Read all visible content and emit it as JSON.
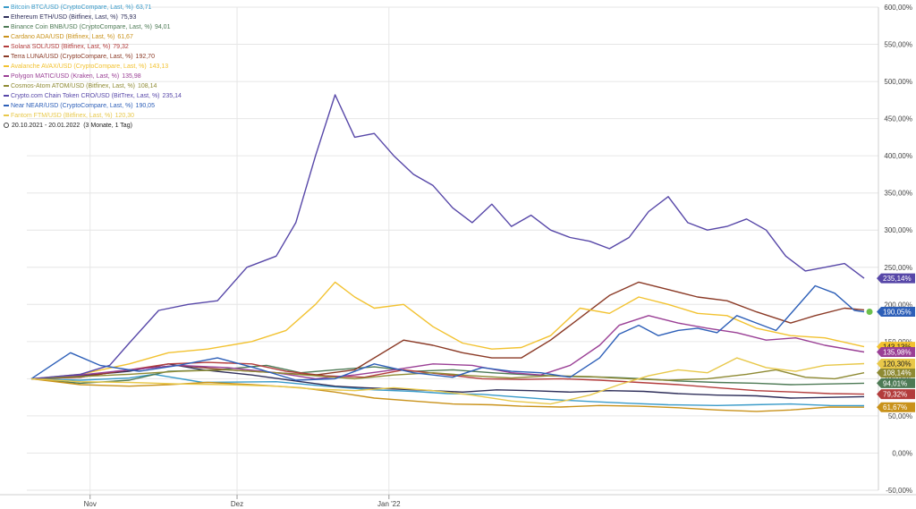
{
  "chart_data": {
    "type": "line",
    "date_range": "20.10.2021 - 20.01.2022",
    "period": "(3 Monate, 1 Tag)",
    "x_ticks": [
      "Nov",
      "Dez",
      "Jan '22"
    ],
    "y_ticks": [
      "600,00%",
      "550,00%",
      "500,00%",
      "450,00%",
      "400,00%",
      "350,00%",
      "300,00%",
      "250,00%",
      "200,00%",
      "150,00%",
      "100,00%",
      "50,00%",
      "0,00%",
      "-50,00%"
    ],
    "ylim": [
      -50,
      600
    ],
    "grid": true,
    "legend_position": "top-left",
    "series": [
      {
        "name": "Bitcoin BTC/USD (CryptoCompare, Last, %)",
        "last": "63,71",
        "badge": "",
        "color": "#3a9bc9",
        "points": [
          [
            0,
            100
          ],
          [
            10,
            98
          ],
          [
            20,
            101
          ],
          [
            25,
            106
          ],
          [
            35,
            95
          ],
          [
            50,
            96
          ],
          [
            60,
            90
          ],
          [
            70,
            85
          ],
          [
            78,
            83
          ],
          [
            85,
            80
          ],
          [
            92,
            79
          ],
          [
            98,
            76
          ],
          [
            106,
            72
          ],
          [
            115,
            69
          ],
          [
            122,
            67
          ],
          [
            130,
            65
          ],
          [
            140,
            64
          ],
          [
            147,
            65
          ],
          [
            155,
            66
          ],
          [
            163,
            64
          ],
          [
            170,
            63.7
          ]
        ]
      },
      {
        "name": "Ethereum ETH/USD (Bitfinex, Last, %)",
        "last": "75,93",
        "badge": "",
        "color": "#2f2f5a",
        "points": [
          [
            0,
            100
          ],
          [
            10,
            104
          ],
          [
            20,
            110
          ],
          [
            28,
            120
          ],
          [
            35,
            112
          ],
          [
            45,
            105
          ],
          [
            55,
            96
          ],
          [
            62,
            90
          ],
          [
            68,
            88
          ],
          [
            75,
            86
          ],
          [
            82,
            84
          ],
          [
            88,
            82
          ],
          [
            95,
            85
          ],
          [
            102,
            84
          ],
          [
            110,
            82
          ],
          [
            118,
            84
          ],
          [
            125,
            83
          ],
          [
            132,
            80
          ],
          [
            140,
            78
          ],
          [
            148,
            77
          ],
          [
            155,
            74
          ],
          [
            163,
            75
          ],
          [
            170,
            75.9
          ]
        ]
      },
      {
        "name": "Binance Coin BNB/USD (CryptoCompare, Last, %)",
        "last": "94,01",
        "badge": "94,01%",
        "color": "#4d7a55",
        "points": [
          [
            0,
            100
          ],
          [
            10,
            94
          ],
          [
            20,
            98
          ],
          [
            28,
            110
          ],
          [
            38,
            112
          ],
          [
            48,
            118
          ],
          [
            55,
            108
          ],
          [
            62,
            112
          ],
          [
            70,
            116
          ],
          [
            78,
            110
          ],
          [
            86,
            112
          ],
          [
            94,
            108
          ],
          [
            102,
            105
          ],
          [
            110,
            103
          ],
          [
            118,
            102
          ],
          [
            125,
            100
          ],
          [
            132,
            97
          ],
          [
            140,
            95
          ],
          [
            148,
            94
          ],
          [
            155,
            92
          ],
          [
            163,
            93
          ],
          [
            170,
            94
          ]
        ]
      },
      {
        "name": "Cardano ADA/USD (Bitfinex, Last, %)",
        "last": "61,67",
        "badge": "61,67%",
        "color": "#c9921a",
        "points": [
          [
            0,
            100
          ],
          [
            10,
            92
          ],
          [
            20,
            90
          ],
          [
            28,
            92
          ],
          [
            36,
            95
          ],
          [
            45,
            92
          ],
          [
            55,
            88
          ],
          [
            62,
            82
          ],
          [
            70,
            74
          ],
          [
            78,
            70
          ],
          [
            86,
            66
          ],
          [
            94,
            65
          ],
          [
            100,
            63
          ],
          [
            108,
            62
          ],
          [
            116,
            64
          ],
          [
            124,
            63
          ],
          [
            132,
            61
          ],
          [
            140,
            58
          ],
          [
            148,
            56
          ],
          [
            155,
            58
          ],
          [
            163,
            62
          ],
          [
            170,
            61.7
          ]
        ]
      },
      {
        "name": "Solana SOL/USD (Bitfinex, Last, %)",
        "last": "79,32",
        "badge": "79,32%",
        "color": "#b33c3c",
        "points": [
          [
            0,
            100
          ],
          [
            10,
            102
          ],
          [
            20,
            112
          ],
          [
            28,
            120
          ],
          [
            36,
            122
          ],
          [
            45,
            120
          ],
          [
            52,
            110
          ],
          [
            60,
            104
          ],
          [
            68,
            102
          ],
          [
            76,
            112
          ],
          [
            84,
            106
          ],
          [
            92,
            100
          ],
          [
            100,
            99
          ],
          [
            108,
            100
          ],
          [
            116,
            98
          ],
          [
            124,
            95
          ],
          [
            132,
            92
          ],
          [
            140,
            88
          ],
          [
            148,
            84
          ],
          [
            156,
            82
          ],
          [
            163,
            80
          ],
          [
            170,
            79.3
          ]
        ]
      },
      {
        "name": "Terra LUNA/USD (CryptoCompare, Last, %)",
        "last": "192,70",
        "badge": "",
        "color": "#8b3a26",
        "points": [
          [
            0,
            100
          ],
          [
            10,
            102
          ],
          [
            20,
            112
          ],
          [
            30,
            118
          ],
          [
            40,
            112
          ],
          [
            50,
            108
          ],
          [
            58,
            105
          ],
          [
            66,
            112
          ],
          [
            76,
            152
          ],
          [
            82,
            145
          ],
          [
            88,
            135
          ],
          [
            94,
            128
          ],
          [
            100,
            128
          ],
          [
            106,
            152
          ],
          [
            112,
            182
          ],
          [
            118,
            212
          ],
          [
            124,
            230
          ],
          [
            130,
            220
          ],
          [
            136,
            210
          ],
          [
            142,
            205
          ],
          [
            148,
            190
          ],
          [
            155,
            175
          ],
          [
            160,
            185
          ],
          [
            166,
            195
          ],
          [
            170,
            192.7
          ]
        ]
      },
      {
        "name": "Avalanche AVAX/USD (CryptoCompare, Last, %)",
        "last": "143,13",
        "badge": "143,13%",
        "color": "#f2c230",
        "points": [
          [
            0,
            100
          ],
          [
            10,
            106
          ],
          [
            20,
            120
          ],
          [
            28,
            135
          ],
          [
            36,
            140
          ],
          [
            45,
            150
          ],
          [
            52,
            165
          ],
          [
            58,
            200
          ],
          [
            62,
            230
          ],
          [
            66,
            210
          ],
          [
            70,
            195
          ],
          [
            76,
            200
          ],
          [
            82,
            170
          ],
          [
            88,
            148
          ],
          [
            94,
            140
          ],
          [
            100,
            142
          ],
          [
            106,
            158
          ],
          [
            112,
            195
          ],
          [
            118,
            188
          ],
          [
            124,
            210
          ],
          [
            130,
            200
          ],
          [
            136,
            188
          ],
          [
            142,
            185
          ],
          [
            148,
            168
          ],
          [
            155,
            158
          ],
          [
            162,
            155
          ],
          [
            170,
            143.1
          ]
        ]
      },
      {
        "name": "Polygon MATIC/USD (Kraken, Last, %)",
        "last": "135,98",
        "badge": "135,98%",
        "color": "#9a3f95",
        "points": [
          [
            0,
            100
          ],
          [
            10,
            105
          ],
          [
            20,
            112
          ],
          [
            30,
            118
          ],
          [
            40,
            115
          ],
          [
            50,
            108
          ],
          [
            58,
            100
          ],
          [
            66,
            105
          ],
          [
            74,
            112
          ],
          [
            82,
            120
          ],
          [
            90,
            118
          ],
          [
            98,
            108
          ],
          [
            104,
            105
          ],
          [
            110,
            118
          ],
          [
            116,
            145
          ],
          [
            120,
            172
          ],
          [
            126,
            185
          ],
          [
            132,
            175
          ],
          [
            138,
            168
          ],
          [
            144,
            162
          ],
          [
            150,
            152
          ],
          [
            156,
            155
          ],
          [
            162,
            145
          ],
          [
            170,
            136
          ]
        ]
      },
      {
        "name": "Cosmos-Atom ATOM/USD (Bitfinex, Last, %)",
        "last": "108,14",
        "badge": "108,14%",
        "color": "#8e8a33",
        "points": [
          [
            0,
            100
          ],
          [
            10,
            103
          ],
          [
            20,
            106
          ],
          [
            30,
            110
          ],
          [
            40,
            112
          ],
          [
            50,
            108
          ],
          [
            58,
            104
          ],
          [
            66,
            100
          ],
          [
            74,
            105
          ],
          [
            82,
            108
          ],
          [
            90,
            104
          ],
          [
            98,
            101
          ],
          [
            106,
            104
          ],
          [
            114,
            103
          ],
          [
            122,
            100
          ],
          [
            130,
            98
          ],
          [
            138,
            100
          ],
          [
            146,
            106
          ],
          [
            152,
            112
          ],
          [
            158,
            102
          ],
          [
            164,
            100
          ],
          [
            170,
            108.1
          ]
        ]
      },
      {
        "name": "Crypto.com Chain Token CRO/USD (BitTrex, Last, %)",
        "last": "235,14",
        "badge": "235,14%",
        "color": "#5747a8",
        "points": [
          [
            0,
            100
          ],
          [
            10,
            106
          ],
          [
            16,
            118
          ],
          [
            20,
            148
          ],
          [
            26,
            192
          ],
          [
            32,
            200
          ],
          [
            38,
            205
          ],
          [
            44,
            250
          ],
          [
            50,
            265
          ],
          [
            54,
            310
          ],
          [
            58,
            400
          ],
          [
            62,
            482
          ],
          [
            66,
            425
          ],
          [
            70,
            430
          ],
          [
            74,
            400
          ],
          [
            78,
            375
          ],
          [
            82,
            360
          ],
          [
            86,
            330
          ],
          [
            90,
            310
          ],
          [
            94,
            335
          ],
          [
            98,
            305
          ],
          [
            102,
            320
          ],
          [
            106,
            300
          ],
          [
            110,
            290
          ],
          [
            114,
            285
          ],
          [
            118,
            275
          ],
          [
            122,
            290
          ],
          [
            126,
            325
          ],
          [
            130,
            345
          ],
          [
            134,
            310
          ],
          [
            138,
            300
          ],
          [
            142,
            305
          ],
          [
            146,
            315
          ],
          [
            150,
            300
          ],
          [
            154,
            265
          ],
          [
            158,
            245
          ],
          [
            162,
            250
          ],
          [
            166,
            255
          ],
          [
            170,
            235.1
          ]
        ]
      },
      {
        "name": "Near NEAR/USD (CryptoCompare, Last, %)",
        "last": "190,05",
        "badge": "190,05%",
        "color": "#2d5fb8",
        "points": [
          [
            0,
            100
          ],
          [
            8,
            135
          ],
          [
            14,
            118
          ],
          [
            22,
            110
          ],
          [
            30,
            118
          ],
          [
            38,
            128
          ],
          [
            46,
            114
          ],
          [
            54,
            98
          ],
          [
            62,
            100
          ],
          [
            70,
            120
          ],
          [
            78,
            108
          ],
          [
            86,
            102
          ],
          [
            92,
            115
          ],
          [
            98,
            110
          ],
          [
            104,
            108
          ],
          [
            110,
            102
          ],
          [
            116,
            128
          ],
          [
            120,
            160
          ],
          [
            124,
            172
          ],
          [
            128,
            158
          ],
          [
            132,
            165
          ],
          [
            136,
            168
          ],
          [
            140,
            162
          ],
          [
            144,
            185
          ],
          [
            148,
            175
          ],
          [
            152,
            165
          ],
          [
            156,
            195
          ],
          [
            160,
            225
          ],
          [
            164,
            215
          ],
          [
            168,
            192
          ],
          [
            170,
            190.1
          ]
        ]
      },
      {
        "name": "Fantom FTM/USD (Bitfinex, Last, %)",
        "last": "120,30",
        "badge": "120,30%",
        "color": "#e8c84a",
        "points": [
          [
            0,
            100
          ],
          [
            10,
            96
          ],
          [
            20,
            95
          ],
          [
            30,
            93
          ],
          [
            40,
            92
          ],
          [
            50,
            90
          ],
          [
            58,
            86
          ],
          [
            66,
            84
          ],
          [
            74,
            88
          ],
          [
            82,
            84
          ],
          [
            90,
            78
          ],
          [
            98,
            70
          ],
          [
            106,
            66
          ],
          [
            114,
            78
          ],
          [
            120,
            92
          ],
          [
            126,
            104
          ],
          [
            132,
            112
          ],
          [
            138,
            108
          ],
          [
            144,
            128
          ],
          [
            150,
            115
          ],
          [
            156,
            110
          ],
          [
            162,
            118
          ],
          [
            170,
            120.3
          ]
        ]
      }
    ]
  }
}
